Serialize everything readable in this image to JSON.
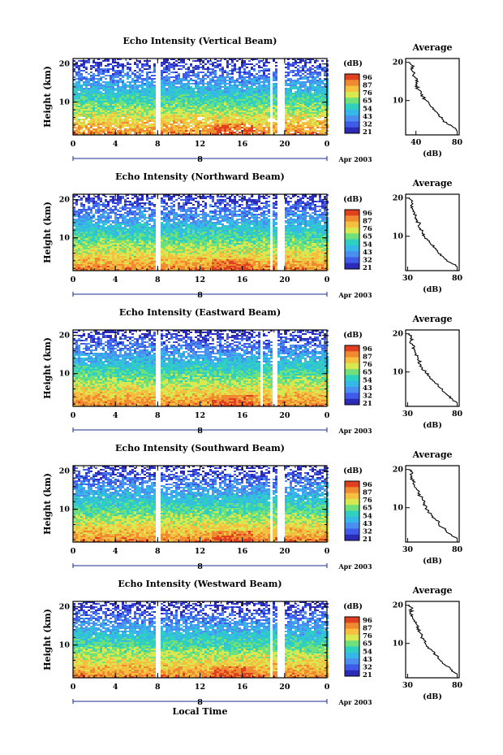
{
  "chart_data": [
    {
      "type": "heatmap",
      "title": "Echo Intensity (Vertical Beam)",
      "ylabel": "Height (km)",
      "xticks": [
        "0",
        "4",
        "8",
        "12",
        "16",
        "20",
        "0"
      ],
      "yticks": [
        "20",
        "10"
      ],
      "date_label": "Apr 2003",
      "day_label": "8",
      "gaps": [
        [
          7.6,
          8.2
        ],
        [
          18.6,
          18.8
        ],
        [
          19.3,
          19.8
        ]
      ],
      "colorbar": {
        "label": "(dB)",
        "ticks": [
          "96",
          "87",
          "76",
          "65",
          "54",
          "43",
          "32",
          "21"
        ]
      },
      "average": {
        "title": "Average",
        "xlabel": "(dB)",
        "xticks": [
          "40",
          "80"
        ],
        "xlim": [
          30,
          82
        ],
        "yticks": [
          "20",
          "10"
        ],
        "ylim": [
          1,
          21
        ],
        "profile": [
          [
            2,
            80
          ],
          [
            3,
            76
          ],
          [
            4,
            70
          ],
          [
            5,
            66
          ],
          [
            6,
            62
          ],
          [
            7,
            60
          ],
          [
            8,
            57
          ],
          [
            9,
            53
          ],
          [
            10,
            50
          ],
          [
            11,
            47
          ],
          [
            12,
            45
          ],
          [
            13,
            42
          ],
          [
            14,
            41
          ],
          [
            15,
            42
          ],
          [
            16,
            39
          ],
          [
            17,
            38
          ],
          [
            18,
            36
          ],
          [
            19,
            38
          ],
          [
            20,
            34
          ]
        ]
      }
    },
    {
      "type": "heatmap",
      "title": "Echo Intensity (Northward Beam)",
      "ylabel": "Height (km)",
      "xticks": [
        "0",
        "4",
        "8",
        "12",
        "16",
        "20",
        "0"
      ],
      "yticks": [
        "20",
        "10"
      ],
      "date_label": "Apr 2003",
      "day_label": "8",
      "gaps": [
        [
          7.6,
          8.2
        ],
        [
          18.6,
          18.8
        ],
        [
          19.3,
          19.8
        ]
      ],
      "colorbar": {
        "label": "(dB)",
        "ticks": [
          "96",
          "87",
          "76",
          "65",
          "54",
          "43",
          "32",
          "21"
        ]
      },
      "average": {
        "title": "Average",
        "xlabel": "(dB)",
        "xticks": [
          "30",
          "80"
        ],
        "xlim": [
          28,
          82
        ],
        "yticks": [
          "20",
          "10"
        ],
        "ylim": [
          1,
          21
        ],
        "profile": [
          [
            2,
            80
          ],
          [
            3,
            74
          ],
          [
            4,
            68
          ],
          [
            5,
            63
          ],
          [
            6,
            60
          ],
          [
            7,
            57
          ],
          [
            8,
            53
          ],
          [
            9,
            50
          ],
          [
            10,
            47
          ],
          [
            11,
            45
          ],
          [
            12,
            43
          ],
          [
            13,
            42
          ],
          [
            14,
            40
          ],
          [
            15,
            38
          ],
          [
            16,
            37
          ],
          [
            17,
            35
          ],
          [
            18,
            33
          ],
          [
            19,
            34
          ],
          [
            20,
            31
          ]
        ]
      }
    },
    {
      "type": "heatmap",
      "title": "Echo Intensity (Eastward Beam)",
      "ylabel": "Height (km)",
      "xticks": [
        "0",
        "4",
        "8",
        "12",
        "16",
        "20",
        "0"
      ],
      "yticks": [
        "20",
        "10"
      ],
      "date_label": "Apr 2003",
      "day_label": "8",
      "gaps": [
        [
          7.6,
          8.2
        ],
        [
          17.6,
          17.9
        ],
        [
          18.8,
          19.1
        ]
      ],
      "colorbar": {
        "label": "(dB)",
        "ticks": [
          "96",
          "87",
          "76",
          "65",
          "54",
          "43",
          "32",
          "21"
        ]
      },
      "average": {
        "title": "Average",
        "xlabel": "(dB)",
        "xticks": [
          "30",
          "80"
        ],
        "xlim": [
          28,
          82
        ],
        "yticks": [
          "20",
          "10"
        ],
        "ylim": [
          1,
          21
        ],
        "profile": [
          [
            2,
            80
          ],
          [
            3,
            75
          ],
          [
            4,
            70
          ],
          [
            5,
            65
          ],
          [
            6,
            62
          ],
          [
            7,
            58
          ],
          [
            8,
            55
          ],
          [
            9,
            51
          ],
          [
            10,
            48
          ],
          [
            11,
            45
          ],
          [
            12,
            43
          ],
          [
            13,
            41
          ],
          [
            14,
            40
          ],
          [
            15,
            38
          ],
          [
            16,
            37
          ],
          [
            17,
            35
          ],
          [
            18,
            33
          ],
          [
            19,
            34
          ],
          [
            20,
            31
          ]
        ]
      }
    },
    {
      "type": "heatmap",
      "title": "Echo Intensity (Southward Beam)",
      "ylabel": "Height (km)",
      "xticks": [
        "0",
        "4",
        "8",
        "12",
        "16",
        "20",
        "0"
      ],
      "yticks": [
        "20",
        "10"
      ],
      "date_label": "Apr 2003",
      "day_label": "8",
      "gaps": [
        [
          7.6,
          8.2
        ],
        [
          18.6,
          18.8
        ],
        [
          19.3,
          19.8
        ]
      ],
      "colorbar": {
        "label": "(dB)",
        "ticks": [
          "96",
          "87",
          "76",
          "65",
          "54",
          "43",
          "32",
          "21"
        ]
      },
      "average": {
        "title": "Average",
        "xlabel": "(dB)",
        "xticks": [
          "30",
          "80"
        ],
        "xlim": [
          28,
          82
        ],
        "yticks": [
          "20",
          "10"
        ],
        "ylim": [
          1,
          21
        ],
        "profile": [
          [
            2,
            80
          ],
          [
            3,
            74
          ],
          [
            4,
            69
          ],
          [
            5,
            64
          ],
          [
            6,
            61
          ],
          [
            7,
            58
          ],
          [
            8,
            54
          ],
          [
            9,
            51
          ],
          [
            10,
            49
          ],
          [
            11,
            47
          ],
          [
            12,
            45
          ],
          [
            13,
            43
          ],
          [
            14,
            41
          ],
          [
            15,
            39
          ],
          [
            16,
            37
          ],
          [
            17,
            35
          ],
          [
            18,
            33
          ],
          [
            19,
            35
          ],
          [
            20,
            31
          ]
        ]
      }
    },
    {
      "type": "heatmap",
      "title": "Echo Intensity (Westward Beam)",
      "ylabel": "Height (km)",
      "xlabel": "Local Time",
      "xticks": [
        "0",
        "4",
        "8",
        "12",
        "16",
        "20",
        "0"
      ],
      "yticks": [
        "20",
        "10"
      ],
      "date_label": "Apr 2003",
      "day_label": "8",
      "gaps": [
        [
          7.6,
          8.2
        ],
        [
          18.6,
          18.8
        ],
        [
          19.3,
          19.8
        ]
      ],
      "colorbar": {
        "label": "(dB)",
        "ticks": [
          "96",
          "87",
          "76",
          "65",
          "54",
          "43",
          "32",
          "21"
        ]
      },
      "average": {
        "title": "Average",
        "xlabel": "(dB)",
        "xticks": [
          "30",
          "80"
        ],
        "xlim": [
          28,
          82
        ],
        "yticks": [
          "20",
          "10"
        ],
        "ylim": [
          1,
          21
        ],
        "profile": [
          [
            2,
            80
          ],
          [
            3,
            75
          ],
          [
            4,
            70
          ],
          [
            5,
            65
          ],
          [
            6,
            61
          ],
          [
            7,
            58
          ],
          [
            8,
            55
          ],
          [
            9,
            51
          ],
          [
            10,
            48
          ],
          [
            11,
            46
          ],
          [
            12,
            44
          ],
          [
            13,
            42
          ],
          [
            14,
            41
          ],
          [
            15,
            39
          ],
          [
            16,
            37
          ],
          [
            17,
            35
          ],
          [
            18,
            33
          ],
          [
            19,
            34
          ],
          [
            20,
            31
          ]
        ]
      }
    }
  ],
  "colormap": [
    "#2b2bb8",
    "#3f5be8",
    "#4a8ff0",
    "#35b8e8",
    "#2fd0c0",
    "#6fe07a",
    "#d8e850",
    "#f5c040",
    "#f08a30",
    "#e04020"
  ]
}
